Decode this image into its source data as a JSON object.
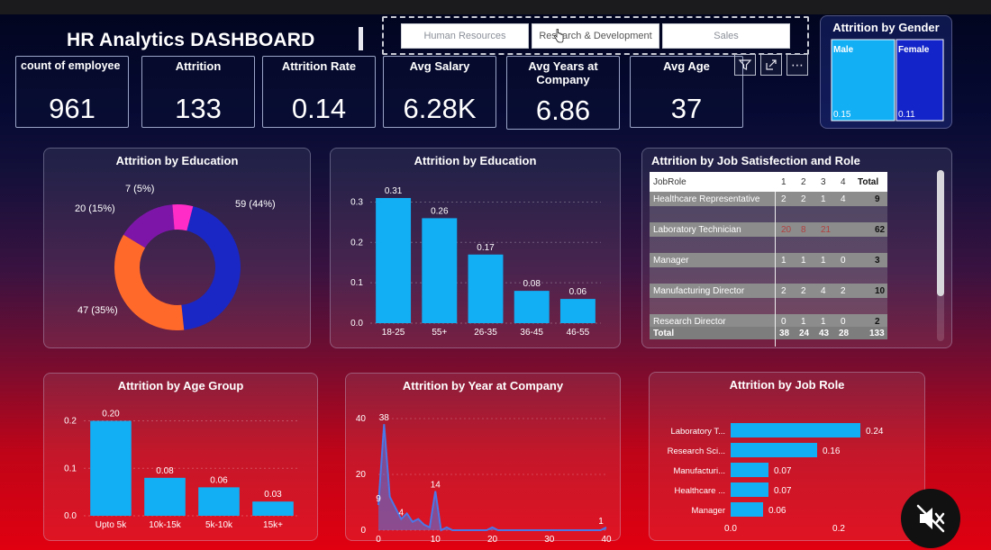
{
  "dashboard": {
    "title": "HR Analytics DASHBOARD"
  },
  "slicer": {
    "options": [
      "Human Resources",
      "Research & Development",
      "Sales"
    ]
  },
  "kpis": [
    {
      "label": "count of employee",
      "value": "961"
    },
    {
      "label": "Attrition",
      "value": "133"
    },
    {
      "label": "Attrition Rate",
      "value": "0.14"
    },
    {
      "label": "Avg Salary",
      "value": "6.28K"
    },
    {
      "label": "Avg Years at Company",
      "value": "6.86"
    },
    {
      "label": "Avg Age",
      "value": "37"
    }
  ],
  "toolbar": {
    "icons": [
      "filter-icon",
      "focus-mode-icon",
      "more-options-icon"
    ],
    "more": "⋯"
  },
  "colors": {
    "bar": "#12aff5",
    "male": "#12aff5",
    "female": "#1324c8",
    "donut_blue": "#1a27c4",
    "donut_orange": "#ff6a2a",
    "donut_purple": "#7d16a8",
    "donut_pink": "#ff2cc7",
    "area": "#4a78e8"
  },
  "chart_data": [
    {
      "type": "bar",
      "title": "Attrition by Gender",
      "categories": [
        "Male",
        "Female"
      ],
      "values": [
        0.15,
        0.11
      ],
      "labels": [
        "0.15",
        "0.11"
      ]
    },
    {
      "type": "pie",
      "title": "Attrition by Education",
      "values": [
        59,
        47,
        20,
        7
      ],
      "labels": [
        "59 (44%)",
        "47 (35%)",
        "20 (15%)",
        "7 (5%)"
      ]
    },
    {
      "type": "bar",
      "title": "Attrition by Education",
      "categories": [
        "18-25",
        "55+",
        "26-35",
        "36-45",
        "46-55"
      ],
      "values": [
        0.31,
        0.26,
        0.17,
        0.08,
        0.06
      ],
      "labels": [
        "0.31",
        "0.26",
        "0.17",
        "0.08",
        "0.06"
      ],
      "yticks": [
        "0.0",
        "0.1",
        "0.2",
        "0.3"
      ],
      "ylim": [
        0,
        0.33
      ]
    },
    {
      "type": "table",
      "title": "Attrition by Job Satisfection and Role",
      "columns": [
        "JobRole",
        "1",
        "2",
        "3",
        "4",
        "Total"
      ],
      "rows": [
        {
          "role": "Healthcare Representative",
          "cells": [
            "2",
            "2",
            "1",
            "4"
          ],
          "total": "9"
        },
        {
          "role": "Laboratory Technician",
          "cells": [
            "20",
            "8",
            "21",
            ""
          ],
          "total": "62"
        },
        {
          "role": "Manager",
          "cells": [
            "1",
            "1",
            "1",
            "0"
          ],
          "total": "3"
        },
        {
          "role": "Manufacturing Director",
          "cells": [
            "2",
            "2",
            "4",
            "2"
          ],
          "total": "10"
        },
        {
          "role": "Research Director",
          "cells": [
            "0",
            "1",
            "1",
            "0"
          ],
          "total": "2"
        }
      ],
      "total_row": {
        "label": "Total",
        "cells": [
          "38",
          "24",
          "43",
          "28"
        ],
        "total": "133"
      }
    },
    {
      "type": "bar",
      "title": "Attrition by Age Group",
      "categories": [
        "Upto 5k",
        "10k-15k",
        "5k-10k",
        "15k+"
      ],
      "values": [
        0.2,
        0.08,
        0.06,
        0.03
      ],
      "labels": [
        "0.20",
        "0.08",
        "0.06",
        "0.03"
      ],
      "yticks": [
        "0.0",
        "0.1",
        "0.2"
      ],
      "ylim": [
        0,
        0.22
      ]
    },
    {
      "type": "area",
      "title": "Attrition by Year at Company",
      "x": [
        0,
        1,
        2,
        3,
        4,
        5,
        6,
        7,
        8,
        9,
        10,
        11,
        12,
        13,
        14,
        15,
        16,
        17,
        18,
        19,
        20,
        21,
        22,
        23,
        24,
        25,
        26,
        27,
        28,
        29,
        30,
        31,
        32,
        33,
        34,
        35,
        36,
        37,
        38,
        39,
        40
      ],
      "y": [
        9,
        38,
        12,
        8,
        4,
        6,
        3,
        4,
        2,
        1,
        14,
        0,
        1,
        0,
        0,
        0,
        0,
        0,
        0,
        0,
        1,
        0,
        0,
        0,
        0,
        0,
        0,
        0,
        0,
        0,
        0,
        0,
        0,
        0,
        0,
        0,
        0,
        0,
        0,
        0,
        1
      ],
      "point_labels": [
        {
          "x": 0,
          "y": 9,
          "label": "9"
        },
        {
          "x": 1,
          "y": 38,
          "label": "38"
        },
        {
          "x": 4,
          "y": 4,
          "label": "4"
        },
        {
          "x": 10,
          "y": 14,
          "label": "14"
        },
        {
          "x": 40,
          "y": 1,
          "label": "1"
        }
      ],
      "xticks": [
        "0",
        "10",
        "20",
        "30",
        "40"
      ],
      "yticks": [
        "0",
        "20",
        "40"
      ],
      "xlim": [
        0,
        40
      ],
      "ylim": [
        0,
        40
      ]
    },
    {
      "type": "bar",
      "title": "Attrition by Job Role",
      "orientation": "horizontal",
      "categories": [
        "Laboratory T...",
        "Research Sci...",
        "Manufacturi...",
        "Healthcare ...",
        "Manager"
      ],
      "values": [
        0.24,
        0.16,
        0.07,
        0.07,
        0.06
      ],
      "labels": [
        "0.24",
        "0.16",
        "0.07",
        "0.07",
        "0.06"
      ],
      "xticks": [
        "0.0",
        "0.2"
      ],
      "xlim": [
        0,
        0.25
      ]
    }
  ]
}
